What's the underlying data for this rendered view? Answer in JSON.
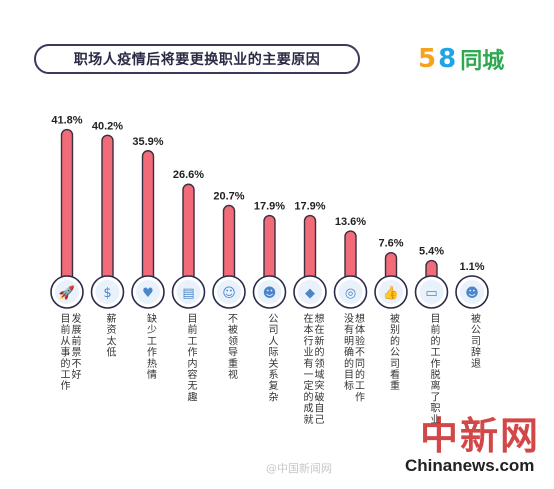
{
  "title": "职场人疫情后将要更换职业的主要原因",
  "brand": {
    "five": "5",
    "eight": "8",
    "name": "同城"
  },
  "watermark": {
    "weibo": "@中国新闻网",
    "cn": "中新网",
    "en": "Chinanews.com"
  },
  "colors": {
    "bar_fill": "#f26b78",
    "bar_stroke": "#3a2f3f",
    "icon_ring": "#2a2a4a",
    "icon_fill": "#4a86c9"
  },
  "chart_data": {
    "type": "bar",
    "categories": [
      "目前从事的工作发展前景不好",
      "薪资太低",
      "缺少工作热情",
      "目前工作内容无趣",
      "不被领导重视",
      "公司人际关系复杂",
      "想在本行业有一定的成就在新的领域突破自己",
      "没有明确的目标想体验不同的工作",
      "被别的公司看重",
      "目前的工作脱离了职业",
      "被公司辞退"
    ],
    "label_lines": [
      [
        "目前从事的工作",
        "发展前景不好"
      ],
      [
        "薪资太低"
      ],
      [
        "缺少工作热情"
      ],
      [
        "目前工作内容无趣"
      ],
      [
        "不被领导重视"
      ],
      [
        "公司人际关系复杂"
      ],
      [
        "在本行业有一定的成就",
        "想在新的领域突破自己"
      ],
      [
        "没有明确的目标",
        "想体验不同的工作"
      ],
      [
        "被别的公司看重"
      ],
      [
        "目前的工作脱离了职业"
      ],
      [
        "被公司辞退"
      ]
    ],
    "values": [
      41.8,
      40.2,
      35.9,
      26.6,
      20.7,
      17.9,
      17.9,
      13.6,
      7.6,
      5.4,
      1.1
    ],
    "value_labels": [
      "41.8%",
      "40.2%",
      "35.9%",
      "26.6%",
      "20.7%",
      "17.9%",
      "17.9%",
      "13.6%",
      "7.6%",
      "5.4%",
      "1.1%"
    ],
    "icons": [
      "rocket-icon",
      "money-bag-icon",
      "heart-hand-icon",
      "clipboard-icon",
      "person-tie-icon",
      "people-group-icon",
      "diamond-icon",
      "target-person-icon",
      "thumbs-up-icon",
      "laptop-person-icon",
      "crowd-icon"
    ],
    "ylim": [
      0,
      45
    ],
    "grid": false
  }
}
